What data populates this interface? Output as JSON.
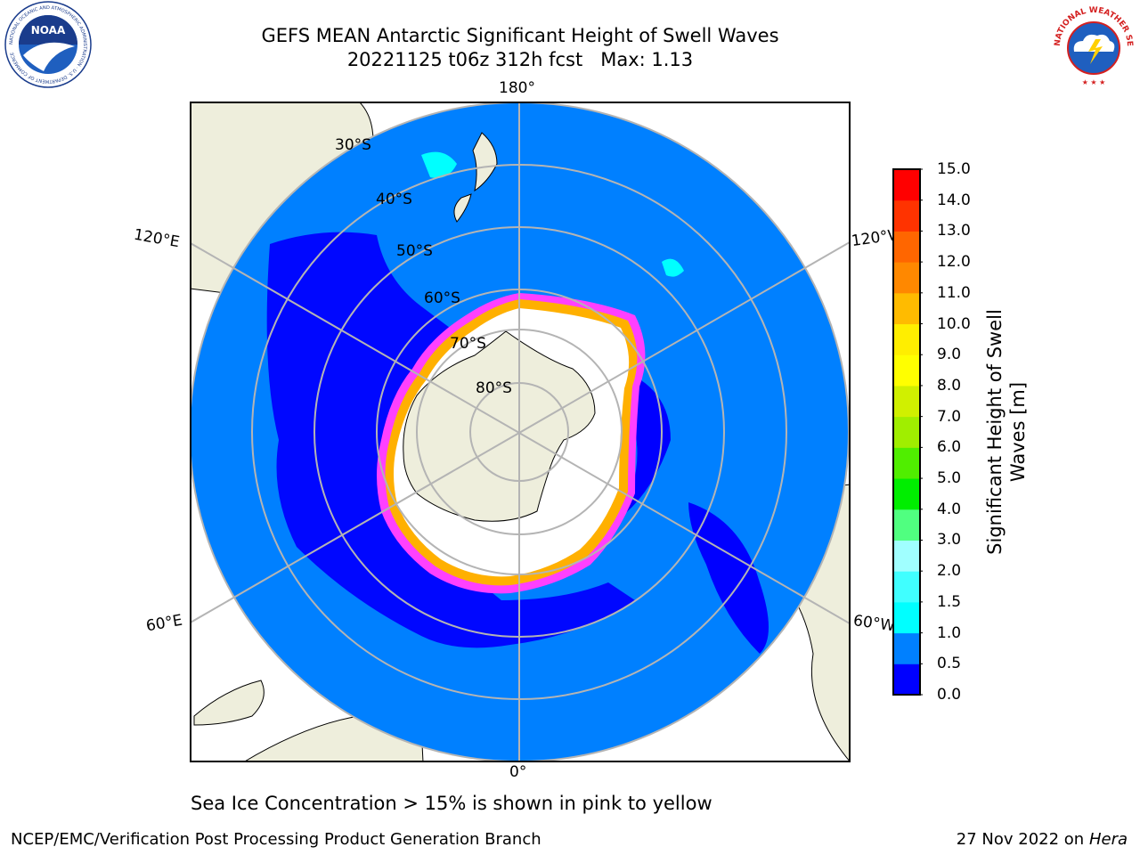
{
  "title": {
    "line1": "GEFS MEAN Antarctic Significant Height of Swell Waves",
    "line2": "20221125 t06z 312h fcst   Max: 1.13"
  },
  "map": {
    "longitude_labels": {
      "top": "180°",
      "bottom": "0°",
      "left_upper": "120°E",
      "left_lower": "60°E",
      "right_upper": "120°W",
      "right_lower": "60°W"
    },
    "latitude_labels": [
      "30°S",
      "40°S",
      "50°S",
      "60°S",
      "70°S",
      "80°S"
    ],
    "colors": {
      "ocean_swell": "#0080ff",
      "low_swell": "#0000ff",
      "land": "#eeeedc",
      "sea_ice": "#ffffff",
      "ice_edge_pink": "#ff40ff",
      "ice_edge_orange": "#ffb000",
      "grid": "#b4b4b4"
    }
  },
  "colorbar": {
    "label": "Significant Height of Swell Waves [m]",
    "ticks": [
      "0.0",
      "0.5",
      "1.0",
      "1.5",
      "2.0",
      "3.0",
      "4.0",
      "5.0",
      "6.0",
      "7.0",
      "8.0",
      "9.0",
      "10.0",
      "11.0",
      "12.0",
      "13.0",
      "14.0",
      "15.0"
    ],
    "colors": [
      "#0000ff",
      "#0080ff",
      "#00ffff",
      "#40ffff",
      "#a0ffff",
      "#50ff80",
      "#00ee00",
      "#50ee00",
      "#a0ee00",
      "#d0f000",
      "#ffff00",
      "#ffee00",
      "#ffbb00",
      "#ff8800",
      "#ff6600",
      "#ff3300",
      "#ff0000"
    ]
  },
  "subtitle": "Sea Ice Concentration > 15% is shown in pink to yellow",
  "footer": {
    "left": "NCEP/EMC/Verification Post Processing Product Generation Branch",
    "right_date": "27 Nov 2022 on",
    "right_host": "Hera"
  },
  "logos": {
    "noaa": {
      "text": "NOAA",
      "ring": "NATIONAL OCEANIC AND ATMOSPHERIC ADMINISTRATION · U.S. DEPARTMENT OF COMMERCE"
    },
    "nws": {
      "ring": "NATIONAL WEATHER SERVICE"
    }
  }
}
